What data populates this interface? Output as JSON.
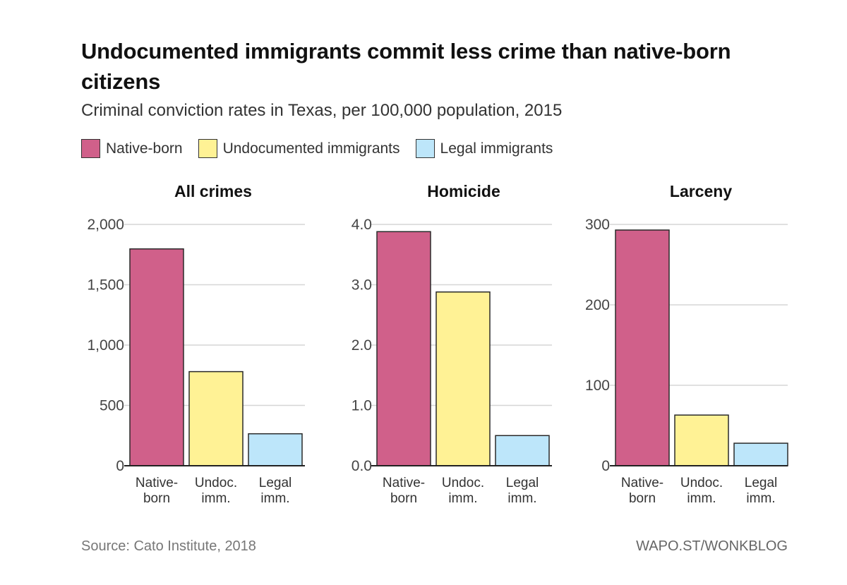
{
  "title": "Undocumented immigrants commit less crime than native-born citizens",
  "subtitle": "Criminal conviction rates in Texas, per 100,000 population, 2015",
  "legend": [
    {
      "label": "Native-born",
      "color": "#d0608a"
    },
    {
      "label": "Undocumented immigrants",
      "color": "#fff295"
    },
    {
      "label": "Legal immigrants",
      "color": "#bde6fa"
    }
  ],
  "footer": {
    "source": "Source: Cato Institute, 2018",
    "credit": "WAPO.ST/WONKBLOG"
  },
  "chart_data": [
    {
      "type": "bar",
      "title": "All crimes",
      "categories": [
        [
          "Native-",
          "born"
        ],
        [
          "Undoc.",
          "imm."
        ],
        [
          "Legal",
          "imm."
        ]
      ],
      "values": [
        1797,
        780,
        265
      ],
      "colors": [
        "#d0608a",
        "#fff295",
        "#bde6fa"
      ],
      "ylim": [
        0,
        2000
      ],
      "yticks": [
        0,
        500,
        1000,
        1500,
        2000
      ],
      "ytick_labels": [
        "0",
        "500",
        "1,000",
        "1,500",
        "2,000"
      ],
      "grid": true
    },
    {
      "type": "bar",
      "title": "Homicide",
      "categories": [
        [
          "Native-",
          "born"
        ],
        [
          "Undoc.",
          "imm."
        ],
        [
          "Legal",
          "imm."
        ]
      ],
      "values": [
        3.88,
        2.88,
        0.5
      ],
      "colors": [
        "#d0608a",
        "#fff295",
        "#bde6fa"
      ],
      "ylim": [
        0,
        4
      ],
      "yticks": [
        0,
        1,
        2,
        3,
        4
      ],
      "ytick_labels": [
        "0.0",
        "1.0",
        "2.0",
        "3.0",
        "4.0"
      ],
      "grid": true
    },
    {
      "type": "bar",
      "title": "Larceny",
      "categories": [
        [
          "Native-",
          "born"
        ],
        [
          "Undoc.",
          "imm."
        ],
        [
          "Legal",
          "imm."
        ]
      ],
      "values": [
        293,
        63,
        28
      ],
      "colors": [
        "#d0608a",
        "#fff295",
        "#bde6fa"
      ],
      "ylim": [
        0,
        300
      ],
      "yticks": [
        0,
        100,
        200,
        300
      ],
      "ytick_labels": [
        "0",
        "100",
        "200",
        "300"
      ],
      "grid": true
    }
  ]
}
